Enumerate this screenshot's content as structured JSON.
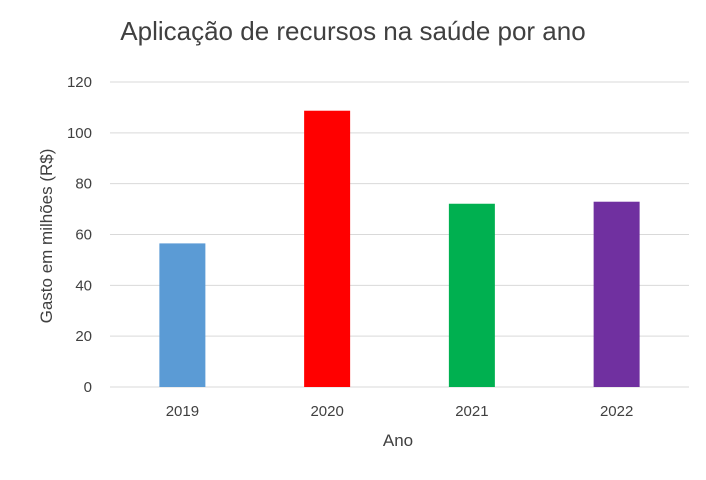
{
  "chart_data": {
    "type": "bar",
    "title": "Aplicação de recursos na saúde por ano",
    "xlabel": "Ano",
    "ylabel": "Gasto em milhões (R$)",
    "categories": [
      "2019",
      "2020",
      "2021",
      "2022"
    ],
    "values": [
      56.5,
      108.7,
      72.1,
      72.9
    ],
    "colors": [
      "#5b9bd5",
      "#ff0000",
      "#00b050",
      "#7030a0"
    ],
    "ylim": [
      0,
      120
    ],
    "yticks": [
      0,
      20,
      40,
      60,
      80,
      100,
      120
    ],
    "yticks_labels": [
      "0",
      "20",
      "40",
      "60",
      "80",
      "100",
      "120"
    ],
    "grid": true,
    "legend": "none"
  }
}
